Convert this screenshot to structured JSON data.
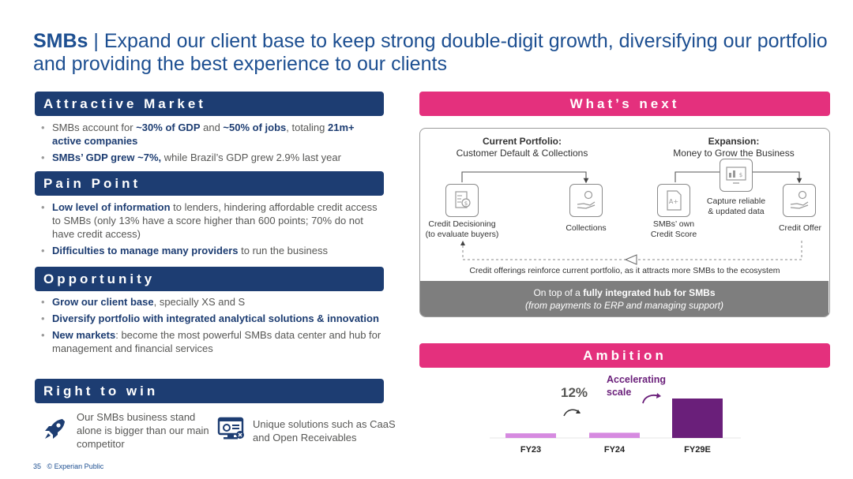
{
  "title": {
    "bold": "SMBs",
    "rest": " | Expand our client base to keep strong double-digit growth, diversifying our portfolio and providing the best experience to our clients"
  },
  "attractive_market": {
    "header": "Attractive Market",
    "b1": {
      "t1": "SMBs account for ",
      "b1": "~30% of GDP",
      "t2": " and ",
      "b2": "~50% of jobs",
      "t3": ", totaling ",
      "b3": "21m+ active companies"
    },
    "b2": {
      "b1": "SMBs’ GDP grew ~7%,",
      "t1": " while Brazil’s GDP grew 2.9% last year"
    }
  },
  "pain_point": {
    "header": "Pain Point",
    "b1": {
      "b1": "Low level of information",
      "t1": " to lenders, hindering affordable credit access to SMBs (only 13% have a score higher than 600 points; 70% do not have credit access)"
    },
    "b2": {
      "b1": "Difficulties to manage many providers",
      "t1": " to run the business"
    }
  },
  "opportunity": {
    "header": "Opportunity",
    "b1": {
      "b1": "Grow our client base",
      "t1": ", specially XS and S"
    },
    "b2": {
      "b1": "Diversify portfolio with integrated analytical solutions & innovation"
    },
    "b3": {
      "b1": "New markets",
      "t1": ": become the most powerful SMBs data center and hub for management and financial services"
    }
  },
  "right_to_win": {
    "header": "Right to win",
    "item1": "Our SMBs business stand alone is bigger than our main competitor",
    "item2": "Unique solutions such as CaaS and Open Receivables"
  },
  "whats_next": {
    "header": "What’s next",
    "current_title": "Current Portfolio:",
    "current_sub": "Customer Default & Collections",
    "expansion_title": "Expansion:",
    "expansion_sub": "Money to Grow the Business",
    "credit_decisioning": "Credit Decisioning\n(to evaluate buyers)",
    "collections": "Collections",
    "smbs_score": "SMBs’ own\nCredit Score",
    "capture": "Capture reliable\n& updated data",
    "credit_offer": "Credit Offer",
    "loop_text": "Credit offerings reinforce current portfolio, as it attracts more SMBs to the ecosystem",
    "hub_t1": "On top of a ",
    "hub_b1": "fully integrated hub for SMBs",
    "hub_sub": "(from payments to ERP and managing support)"
  },
  "ambition": {
    "header": "Ambition",
    "growth_label": "12%",
    "accel_label": "Accelerating scale"
  },
  "chart_data": {
    "type": "bar",
    "categories": [
      "FY23",
      "FY24",
      "FY29E"
    ],
    "values": [
      1.0,
      1.12,
      8.5
    ],
    "colors": [
      "#d68ae0",
      "#d68ae0",
      "#6a1f7a"
    ],
    "annotations": [
      "12%",
      "Accelerating scale"
    ]
  },
  "footer": {
    "page": "35",
    "text": "© Experian Public"
  },
  "colors": {
    "navy": "#1d3d72",
    "title_blue": "#1d4f91",
    "pink": "#e4307d",
    "purple": "#6a1f7a",
    "light_purple": "#d68ae0"
  }
}
